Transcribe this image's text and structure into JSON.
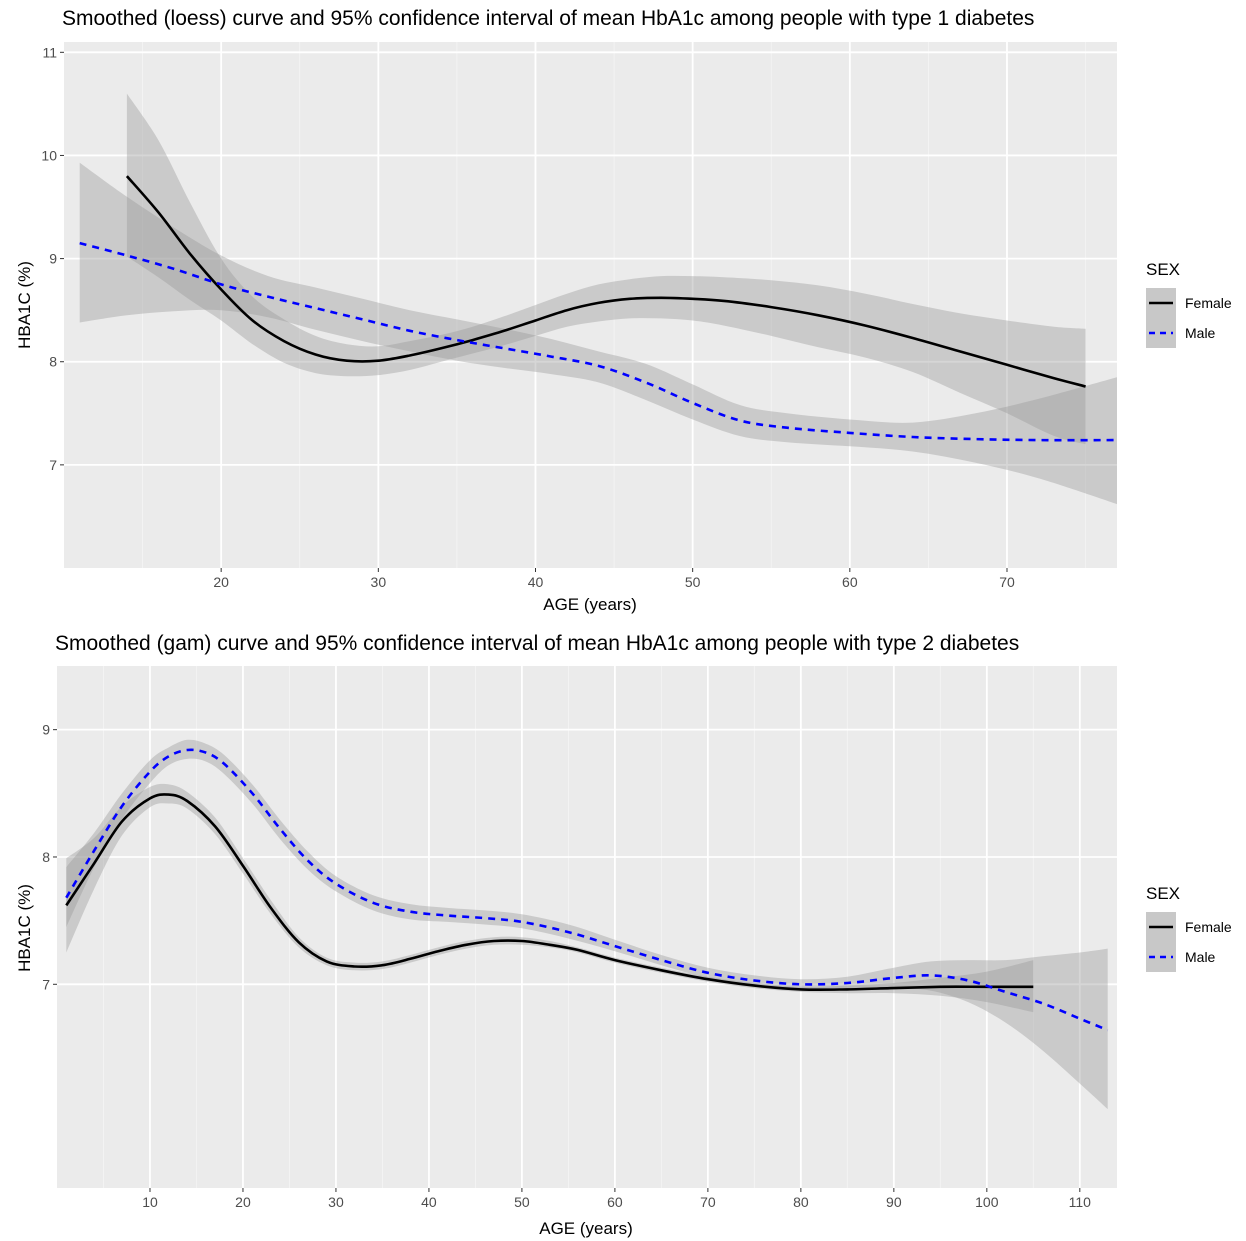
{
  "chart_data": [
    {
      "type": "line",
      "title": "Smoothed (loess) curve and 95% confidence interval of mean HbA1c among people with type 1 diabetes",
      "xlabel": "AGE (years)",
      "ylabel": "HBA1C (%)",
      "xlim": [
        10,
        77
      ],
      "ylim": [
        6.0,
        11.1
      ],
      "xticks": [
        20,
        30,
        40,
        50,
        60,
        70
      ],
      "yticks": [
        7,
        8,
        9,
        10,
        11
      ],
      "grid": true,
      "legend": {
        "title": "SEX",
        "position": "right",
        "entries": [
          "Female",
          "Male"
        ]
      },
      "series": [
        {
          "name": "Female",
          "color": "#000000",
          "dash": "solid",
          "x": [
            14,
            16,
            18,
            20,
            22,
            24,
            26,
            28,
            30,
            32,
            34,
            36,
            38,
            40,
            42,
            44,
            46,
            48,
            50,
            52,
            55,
            58,
            61,
            64,
            67,
            70,
            73,
            75
          ],
          "y": [
            9.8,
            9.45,
            9.05,
            8.7,
            8.4,
            8.2,
            8.07,
            8.01,
            8.01,
            8.06,
            8.13,
            8.21,
            8.3,
            8.4,
            8.5,
            8.57,
            8.61,
            8.62,
            8.61,
            8.59,
            8.53,
            8.45,
            8.35,
            8.23,
            8.1,
            7.97,
            7.84,
            7.76
          ],
          "lower": [
            9.02,
            8.82,
            8.6,
            8.4,
            8.17,
            7.99,
            7.89,
            7.86,
            7.87,
            7.92,
            8.0,
            8.08,
            8.16,
            8.25,
            8.34,
            8.39,
            8.42,
            8.42,
            8.4,
            8.35,
            8.25,
            8.14,
            8.04,
            7.9,
            7.7,
            7.5,
            7.28,
            7.2
          ],
          "upper": [
            10.6,
            10.15,
            9.55,
            9.0,
            8.63,
            8.41,
            8.25,
            8.17,
            8.15,
            8.2,
            8.26,
            8.34,
            8.44,
            8.55,
            8.66,
            8.75,
            8.8,
            8.83,
            8.83,
            8.82,
            8.79,
            8.74,
            8.66,
            8.56,
            8.47,
            8.4,
            8.34,
            8.32
          ]
        },
        {
          "name": "Male",
          "color": "#0000ff",
          "dash": "dashed",
          "x": [
            11,
            14,
            17,
            20,
            23,
            26,
            29,
            32,
            35,
            38,
            41,
            44,
            47,
            50,
            53,
            56,
            60,
            64,
            68,
            72,
            77
          ],
          "y": [
            9.15,
            9.03,
            8.9,
            8.75,
            8.63,
            8.52,
            8.41,
            8.3,
            8.21,
            8.13,
            8.05,
            7.96,
            7.8,
            7.6,
            7.43,
            7.36,
            7.31,
            7.27,
            7.25,
            7.24,
            7.24
          ],
          "lower": [
            8.38,
            8.45,
            8.49,
            8.5,
            8.43,
            8.31,
            8.2,
            8.1,
            8.01,
            7.94,
            7.88,
            7.8,
            7.63,
            7.44,
            7.28,
            7.22,
            7.18,
            7.13,
            7.02,
            6.87,
            6.62
          ],
          "upper": [
            9.93,
            9.6,
            9.3,
            9.03,
            8.83,
            8.72,
            8.61,
            8.5,
            8.41,
            8.32,
            8.22,
            8.1,
            7.98,
            7.78,
            7.58,
            7.5,
            7.44,
            7.41,
            7.5,
            7.64,
            7.85
          ]
        }
      ]
    },
    {
      "type": "line",
      "title": "Smoothed (gam) curve and 95% confidence interval of mean HbA1c among people with type 2 diabetes",
      "xlabel": "AGE (years)",
      "ylabel": "HBA1C (%)",
      "xlim": [
        0,
        114
      ],
      "ylim": [
        5.4,
        9.5
      ],
      "xticks": [
        10,
        20,
        30,
        40,
        50,
        60,
        70,
        80,
        90,
        100,
        110
      ],
      "yticks": [
        7,
        8,
        9
      ],
      "grid": true,
      "legend": {
        "title": "SEX",
        "position": "right",
        "entries": [
          "Female",
          "Male"
        ]
      },
      "series": [
        {
          "name": "Female",
          "color": "#000000",
          "dash": "solid",
          "x": [
            1,
            4,
            7,
            10,
            12,
            14,
            17,
            20,
            23,
            26,
            29,
            32,
            35,
            38,
            41,
            44,
            47,
            50,
            53,
            56,
            60,
            65,
            70,
            75,
            80,
            85,
            90,
            95,
            100,
            105
          ],
          "y": [
            7.62,
            7.95,
            8.28,
            8.46,
            8.49,
            8.44,
            8.24,
            7.93,
            7.6,
            7.33,
            7.18,
            7.14,
            7.15,
            7.2,
            7.26,
            7.31,
            7.34,
            7.34,
            7.31,
            7.27,
            7.19,
            7.11,
            7.04,
            6.99,
            6.96,
            6.96,
            6.97,
            6.98,
            6.98,
            6.98
          ],
          "lower": [
            7.25,
            7.75,
            8.17,
            8.39,
            8.42,
            8.38,
            8.18,
            7.87,
            7.55,
            7.29,
            7.15,
            7.11,
            7.12,
            7.17,
            7.23,
            7.28,
            7.31,
            7.31,
            7.29,
            7.25,
            7.17,
            7.09,
            7.02,
            6.97,
            6.94,
            6.93,
            6.93,
            6.91,
            6.86,
            6.78
          ],
          "upper": [
            7.99,
            8.15,
            8.4,
            8.55,
            8.57,
            8.51,
            8.31,
            7.99,
            7.66,
            7.37,
            7.21,
            7.17,
            7.18,
            7.23,
            7.29,
            7.34,
            7.37,
            7.37,
            7.34,
            7.29,
            7.21,
            7.13,
            7.06,
            7.01,
            6.98,
            6.99,
            7.01,
            7.05,
            7.1,
            7.19
          ]
        },
        {
          "name": "Male",
          "color": "#0000ff",
          "dash": "dashed",
          "x": [
            1,
            4,
            7,
            10,
            12,
            14,
            16,
            18,
            21,
            24,
            27,
            30,
            34,
            38,
            42,
            46,
            50,
            55,
            60,
            65,
            70,
            75,
            80,
            85,
            90,
            94,
            98,
            102,
            106,
            110,
            113
          ],
          "y": [
            7.68,
            8.05,
            8.4,
            8.67,
            8.79,
            8.84,
            8.82,
            8.73,
            8.5,
            8.22,
            7.97,
            7.79,
            7.64,
            7.57,
            7.54,
            7.52,
            7.49,
            7.41,
            7.3,
            7.19,
            7.09,
            7.03,
            7.0,
            7.01,
            7.05,
            7.07,
            7.03,
            6.94,
            6.85,
            6.73,
            6.64
          ],
          "lower": [
            7.45,
            7.92,
            8.3,
            8.58,
            8.72,
            8.77,
            8.75,
            8.65,
            8.42,
            8.14,
            7.9,
            7.73,
            7.58,
            7.51,
            7.49,
            7.47,
            7.44,
            7.36,
            7.26,
            7.15,
            7.05,
            6.99,
            6.96,
            6.96,
            6.97,
            6.95,
            6.86,
            6.7,
            6.48,
            6.22,
            6.02
          ],
          "upper": [
            7.92,
            8.19,
            8.5,
            8.76,
            8.86,
            8.92,
            8.89,
            8.8,
            8.57,
            8.29,
            8.04,
            7.85,
            7.7,
            7.63,
            7.6,
            7.58,
            7.55,
            7.47,
            7.35,
            7.23,
            7.13,
            7.07,
            7.04,
            7.06,
            7.13,
            7.18,
            7.19,
            7.19,
            7.22,
            7.25,
            7.28
          ]
        }
      ]
    }
  ]
}
